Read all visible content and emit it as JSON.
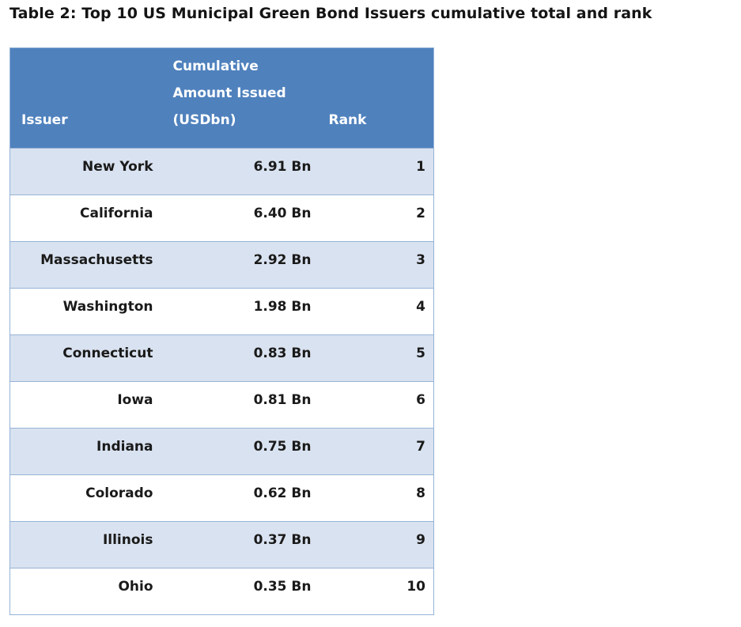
{
  "title": "Table 2: Top 10 US Municipal Green Bond Issuers cumulative total and rank",
  "table": {
    "headers": {
      "issuer": "Issuer",
      "amount": "Cumulative\nAmount Issued\n(USDbn)",
      "rank": "Rank"
    },
    "rows": [
      {
        "issuer": "New York",
        "amount": "6.91 Bn",
        "rank": "1"
      },
      {
        "issuer": "California",
        "amount": "6.40 Bn",
        "rank": "2"
      },
      {
        "issuer": "Massachusetts",
        "amount": "2.92 Bn",
        "rank": "3"
      },
      {
        "issuer": "Washington",
        "amount": "1.98 Bn",
        "rank": "4"
      },
      {
        "issuer": "Connecticut",
        "amount": "0.83 Bn",
        "rank": "5"
      },
      {
        "issuer": "Iowa",
        "amount": "0.81 Bn",
        "rank": "6"
      },
      {
        "issuer": "Indiana",
        "amount": "0.75 Bn",
        "rank": "7"
      },
      {
        "issuer": "Colorado",
        "amount": "0.62 Bn",
        "rank": "8"
      },
      {
        "issuer": "Illinois",
        "amount": "0.37 Bn",
        "rank": "9"
      },
      {
        "issuer": "Ohio",
        "amount": "0.35 Bn",
        "rank": "10"
      }
    ]
  },
  "colors": {
    "header_bg": "#4F81BD",
    "header_text": "#FFFFFF",
    "row_alt": "#D9E2F0",
    "border": "#95B3D7",
    "body_text": "#1A1A1A"
  }
}
